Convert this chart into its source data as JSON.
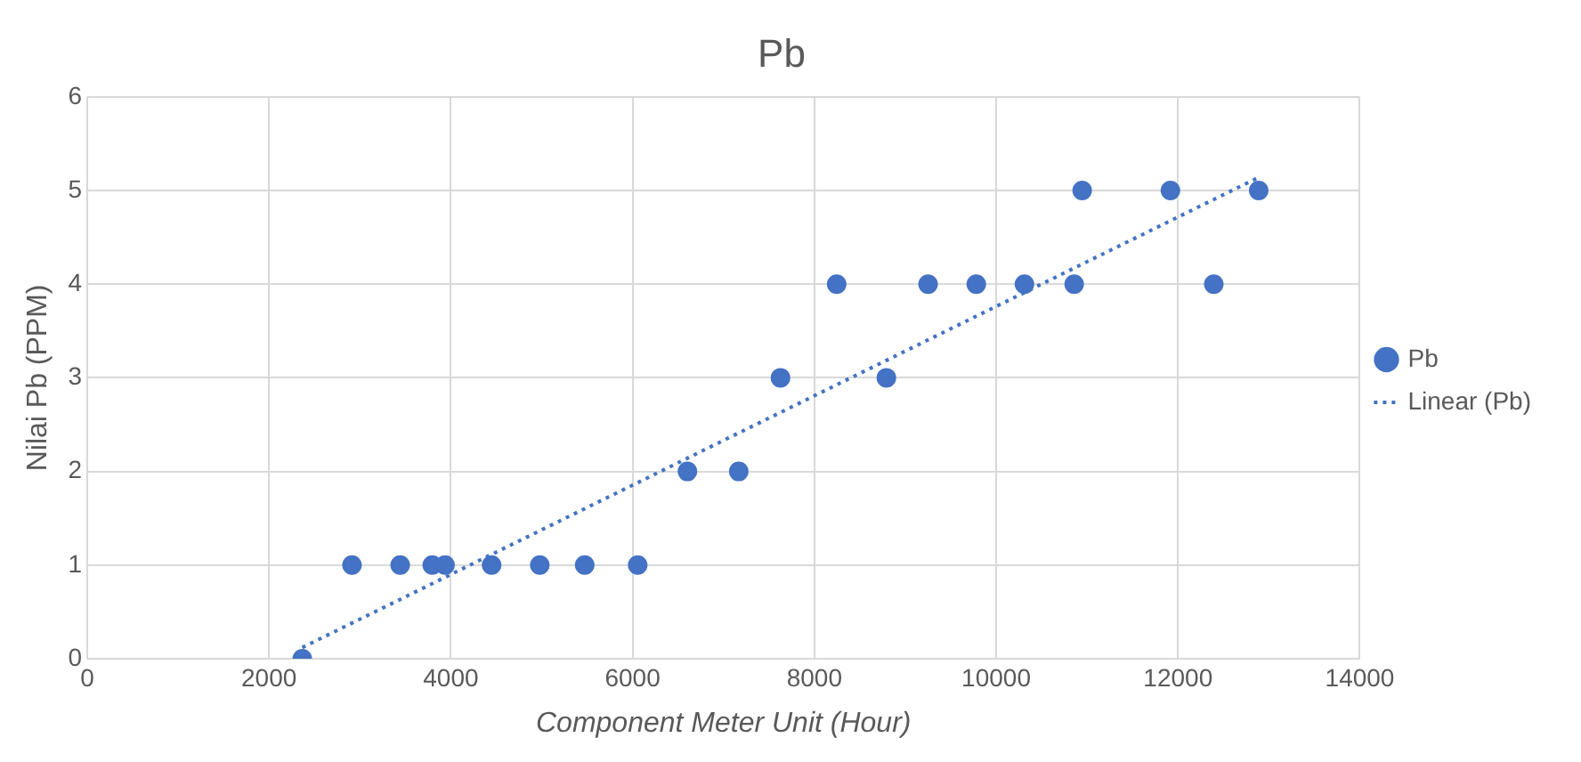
{
  "chart_data": {
    "type": "scatter",
    "title": "Pb",
    "xlabel": "Component Meter Unit (Hour)",
    "ylabel": "Nilai Pb (PPM)",
    "series": [
      {
        "name": "Pb",
        "color": "#4472c4",
        "marker": "circle",
        "x": [
          2366,
          2913,
          3443,
          3796,
          3937,
          4449,
          4979,
          5473,
          6056,
          6603,
          7168,
          7627,
          8245,
          8792,
          9251,
          9781,
          10311,
          10858,
          10946,
          11917,
          12394,
          12888
        ],
        "values": [
          0,
          1,
          1,
          1,
          1,
          1,
          1,
          1,
          1,
          2,
          2,
          3,
          4,
          3,
          4,
          4,
          4,
          4,
          5,
          5,
          4,
          5
        ]
      },
      {
        "name": "Linear (Pb)",
        "type": "line",
        "color": "#4472c4",
        "marker": "none",
        "line_style": "dotted",
        "x": [
          2366,
          12888
        ],
        "values": [
          0.12,
          5.14
        ]
      }
    ],
    "xlim": [
      0,
      14000
    ],
    "xticks": [
      0,
      2000,
      4000,
      6000,
      8000,
      10000,
      12000,
      14000
    ],
    "ylim": [
      0,
      6
    ],
    "yticks": [
      0,
      1,
      2,
      3,
      4,
      5,
      6
    ],
    "grid": true,
    "legend": "right"
  }
}
